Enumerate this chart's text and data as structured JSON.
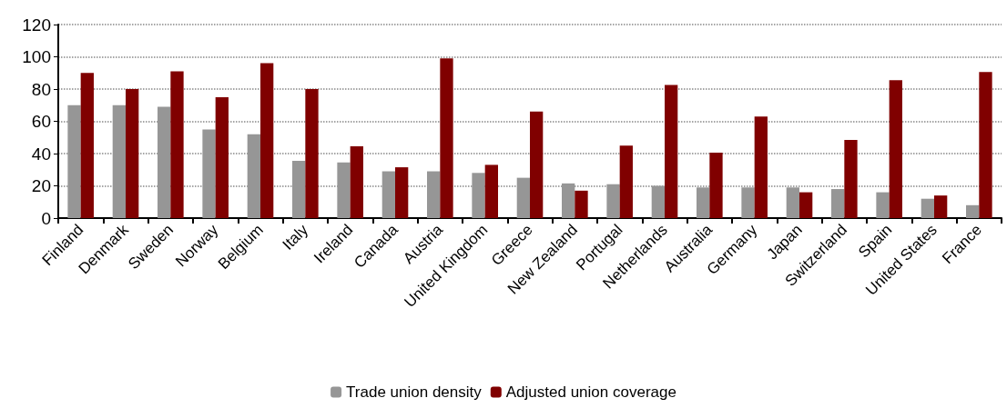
{
  "chart_data": {
    "type": "bar",
    "categories": [
      "Finland",
      "Denmark",
      "Sweden",
      "Norway",
      "Belgium",
      "Italy",
      "Ireland",
      "Canada",
      "Austria",
      "United Kingdom",
      "Greece",
      "New Zealand",
      "Portugal",
      "Netherlands",
      "Australia",
      "Germany",
      "Japan",
      "Switzerland",
      "Spain",
      "United States",
      "France"
    ],
    "series": [
      {
        "name": "Trade union density",
        "color": "#969696",
        "values": [
          70,
          70,
          69,
          55,
          52,
          35.5,
          34.5,
          29,
          29,
          28,
          25,
          21.5,
          21,
          20,
          19,
          19,
          19,
          18,
          16,
          12,
          8
        ]
      },
      {
        "name": "Adjusted union coverage",
        "color": "#800000",
        "values": [
          90,
          80,
          91,
          75,
          96,
          80,
          44.5,
          31.5,
          99,
          33,
          66,
          17,
          45,
          82.5,
          40.5,
          63,
          16,
          48.5,
          85.5,
          14,
          90.5
        ]
      }
    ],
    "ylim": [
      0,
      120
    ],
    "yticks": [
      0,
      20,
      40,
      60,
      80,
      100,
      120
    ],
    "grid": "y",
    "legend": "bottom"
  }
}
